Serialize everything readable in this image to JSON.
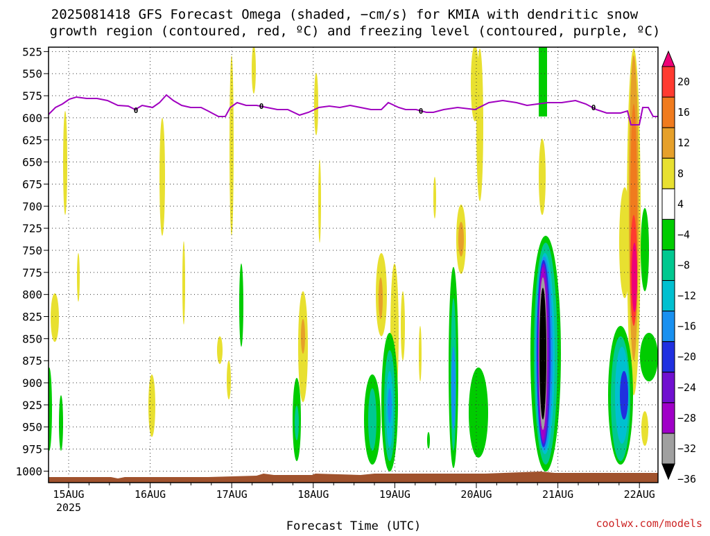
{
  "chart_data": {
    "type": "heatmap",
    "title_lines": [
      "2025081418 GFS Forecast Omega (shaded, −cm/s) for KMIA with dendritic snow",
      "growth region (contoured, red, ºC) and freezing level (contoured, purple, ºC)"
    ],
    "xlabel": "Forecast Time (UTC)",
    "y_ticks": [
      525,
      550,
      575,
      600,
      625,
      650,
      675,
      700,
      725,
      750,
      775,
      800,
      825,
      850,
      875,
      900,
      925,
      950,
      975,
      1000
    ],
    "x_ticks": [
      "15AUG",
      "16AUG",
      "17AUG",
      "18AUG",
      "19AUG",
      "20AUG",
      "21AUG",
      "22AUG"
    ],
    "x_year": "2025",
    "colorbar_ticks": [
      "20",
      "16",
      "12",
      "8",
      "4",
      "−4",
      "−8",
      "−12",
      "−16",
      "−20",
      "−24",
      "−28",
      "−32",
      "−36"
    ],
    "colorbar_colors": [
      "#ee0077",
      "#ff3b30",
      "#f07b1e",
      "#e6a02a",
      "#e8e030",
      "#ffffff",
      "#00cc00",
      "#00c890",
      "#00c0d0",
      "#1890f0",
      "#2030e0",
      "#7010d0",
      "#a000c8",
      "#a0a0a0",
      "#000000"
    ],
    "freezing_level_label": "0",
    "freezing_level_color": "#a000c0",
    "ground_color": "#a0522d",
    "credit": "coolwx.com/models"
  }
}
